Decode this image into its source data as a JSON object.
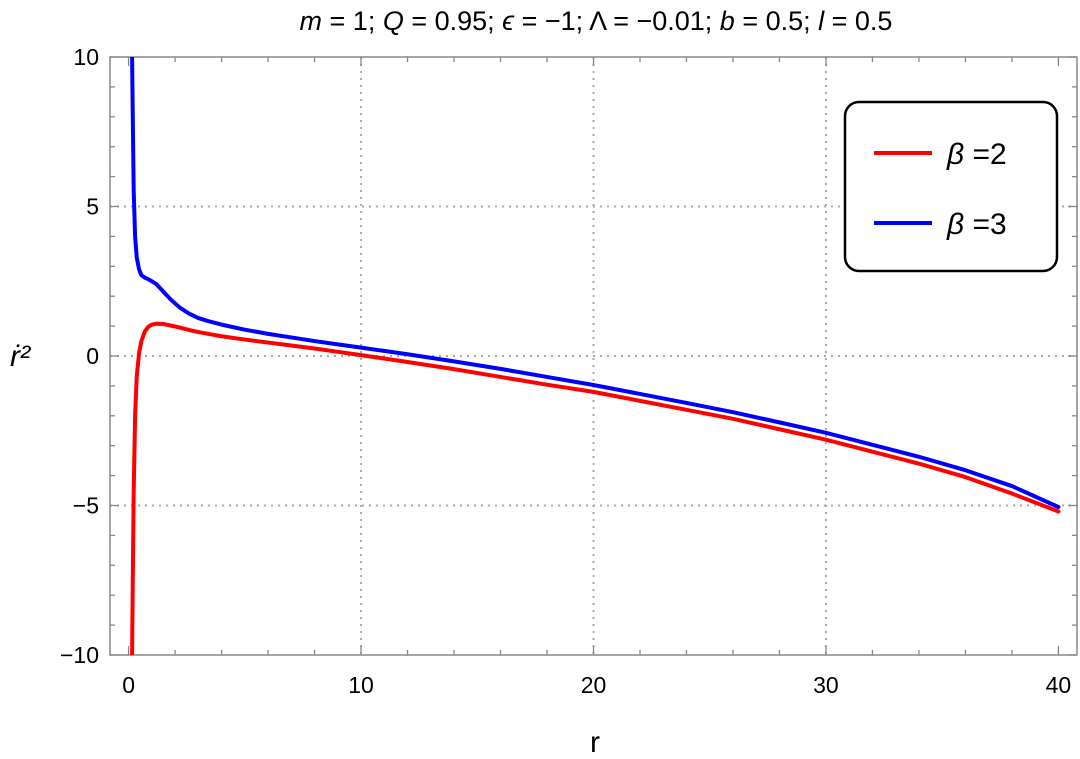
{
  "chart_data": {
    "type": "line",
    "title": "m = 1; Q = 0.95; ϵ = −1; Λ = −0.01; b = 0.5; l = 0.5",
    "title_parts": [
      {
        "t": "m",
        "i": true
      },
      {
        "t": " = 1; ",
        "i": false
      },
      {
        "t": "Q",
        "i": true
      },
      {
        "t": " = 0.95; ",
        "i": false
      },
      {
        "t": "ϵ",
        "i": true
      },
      {
        "t": " = −1; Λ = −0.01; ",
        "i": false
      },
      {
        "t": "b",
        "i": true
      },
      {
        "t": " = 0.5; ",
        "i": false
      },
      {
        "t": "l",
        "i": true
      },
      {
        "t": " = 0.5",
        "i": false
      }
    ],
    "xlabel": "r",
    "ylabel": "ṙ²",
    "xlim": [
      -0.8,
      40.8
    ],
    "ylim": [
      -10,
      10
    ],
    "x_ticks": [
      0,
      10,
      20,
      30,
      40
    ],
    "x_tick_labels": [
      "0",
      "10",
      "20",
      "30",
      "40"
    ],
    "y_ticks": [
      -10,
      -5,
      0,
      5,
      10
    ],
    "y_tick_labels": [
      "−10",
      "−5",
      "0",
      "5",
      "10"
    ],
    "grid": true,
    "grid_style": "dotted",
    "legend_position": "top-right",
    "series": [
      {
        "name": "β =2",
        "color": "#ff0000",
        "x": [
          0.15,
          0.18,
          0.22,
          0.28,
          0.35,
          0.45,
          0.55,
          0.7,
          0.85,
          1.0,
          1.2,
          1.5,
          1.8,
          2.2,
          2.6,
          3.0,
          3.5,
          4,
          5,
          6,
          7,
          8,
          9,
          10,
          12,
          14,
          16,
          18,
          20,
          22,
          24,
          26,
          28,
          30,
          32,
          34,
          36,
          38,
          40
        ],
        "y": [
          -10,
          -7.5,
          -4.5,
          -2.0,
          -0.7,
          0.1,
          0.5,
          0.82,
          0.98,
          1.05,
          1.08,
          1.07,
          1.02,
          0.95,
          0.87,
          0.8,
          0.73,
          0.66,
          0.55,
          0.45,
          0.35,
          0.25,
          0.14,
          0.03,
          -0.2,
          -0.44,
          -0.7,
          -0.96,
          -1.2,
          -1.5,
          -1.8,
          -2.1,
          -2.45,
          -2.8,
          -3.2,
          -3.6,
          -4.05,
          -4.6,
          -5.2
        ]
      },
      {
        "name": "β =3",
        "color": "#0000ff",
        "x": [
          0.15,
          0.18,
          0.22,
          0.28,
          0.35,
          0.45,
          0.55,
          0.7,
          0.85,
          1.0,
          1.2,
          1.5,
          1.8,
          2.2,
          2.6,
          3.0,
          3.5,
          4,
          5,
          6,
          7,
          8,
          9,
          10,
          12,
          14,
          16,
          18,
          20,
          22,
          24,
          26,
          28,
          30,
          32,
          34,
          36,
          38,
          40
        ],
        "y": [
          10,
          8.0,
          5.5,
          4.0,
          3.3,
          2.9,
          2.7,
          2.62,
          2.57,
          2.5,
          2.4,
          2.15,
          1.9,
          1.62,
          1.42,
          1.27,
          1.15,
          1.05,
          0.88,
          0.74,
          0.62,
          0.5,
          0.39,
          0.28,
          0.06,
          -0.18,
          -0.43,
          -0.7,
          -0.97,
          -1.27,
          -1.57,
          -1.88,
          -2.22,
          -2.57,
          -2.97,
          -3.37,
          -3.82,
          -4.35,
          -5.05
        ]
      }
    ]
  }
}
